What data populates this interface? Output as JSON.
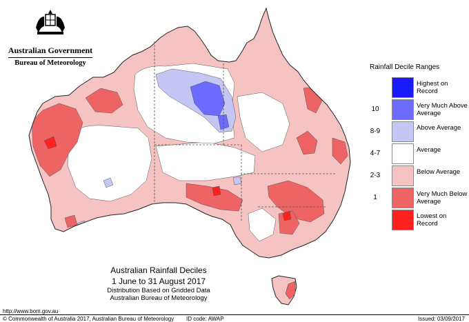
{
  "header": {
    "government": "Australian Government",
    "bureau": "Bureau of Meteorology"
  },
  "legend": {
    "title": "Rainfall Decile Ranges",
    "items": [
      {
        "code": "",
        "label": "Highest on Record",
        "color": "#1a1aff"
      },
      {
        "code": "10",
        "label": "Very Much Above Average",
        "color": "#6b6bff"
      },
      {
        "code": "8-9",
        "label": "Above Average",
        "color": "#c6c6f5"
      },
      {
        "code": "4-7",
        "label": "Average",
        "color": "#ffffff"
      },
      {
        "code": "2-3",
        "label": "Below Average",
        "color": "#f6c3c3"
      },
      {
        "code": "1",
        "label": "Very Much Below Average",
        "color": "#ee6464"
      },
      {
        "code": "",
        "label": "Lowest on Record",
        "color": "#ff2020"
      }
    ]
  },
  "captions": {
    "title": "Australian Rainfall Deciles",
    "period": "1 June to 31 August 2017",
    "method": "Distribution Based on Gridded Data",
    "source": "Australian Bureau of Meteorology"
  },
  "footer": {
    "url": "http://www.bom.gov.au",
    "copyright": "© Commonwealth of Australia 2017, Australian Bureau of Meteorology",
    "id_code": "ID code: AWAP",
    "issued": "Issued: 03/09/2017"
  },
  "map_colors": {
    "average": "#ffffff",
    "below": "#f6c3c3",
    "very_below": "#ee6464",
    "lowest": "#ff2020",
    "above": "#c6c6f5",
    "very_above": "#6b6bff"
  }
}
